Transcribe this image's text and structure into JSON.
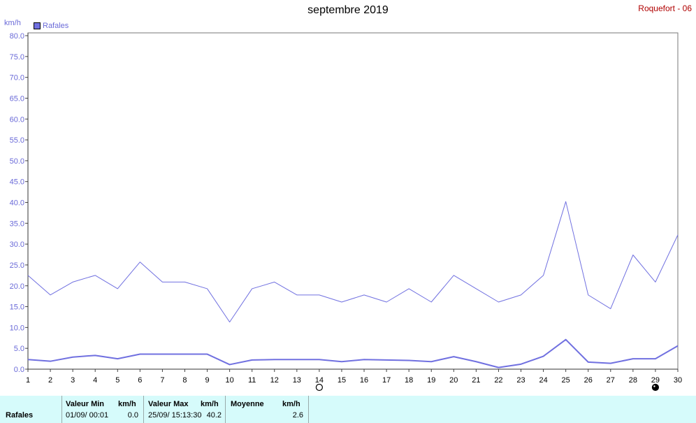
{
  "header": {
    "title": "septembre 2019",
    "station": "Roquefort - 06"
  },
  "legend": {
    "label": "Rafales"
  },
  "unit": "km/h",
  "colors": {
    "series": "#7070e0",
    "grid": "#888888",
    "station": "#b00000",
    "table_bg": "#d6fbfb"
  },
  "moon_icons": [
    {
      "day": 14,
      "icon": "full-moon-icon"
    },
    {
      "day": 29,
      "icon": "new-moon-icon"
    }
  ],
  "chart_data": {
    "type": "line",
    "title": "septembre 2019",
    "ylabel": "km/h",
    "ylim": [
      0,
      80
    ],
    "xlim": [
      1,
      30
    ],
    "grid": true,
    "legend_position": "top-left",
    "x": [
      1,
      2,
      3,
      4,
      5,
      6,
      7,
      8,
      9,
      10,
      11,
      12,
      13,
      14,
      15,
      16,
      17,
      18,
      19,
      20,
      21,
      22,
      23,
      24,
      25,
      26,
      27,
      28,
      29,
      30
    ],
    "x_ticks": [
      "1",
      "2",
      "3",
      "4",
      "5",
      "6",
      "7",
      "8",
      "9",
      "10",
      "11",
      "12",
      "13",
      "14",
      "15",
      "16",
      "17",
      "18",
      "19",
      "20",
      "21",
      "22",
      "23",
      "24",
      "25",
      "26",
      "27",
      "28",
      "29",
      "30"
    ],
    "y_ticks": [
      "0.0",
      "5.0",
      "10.0",
      "15.0",
      "20.0",
      "25.0",
      "30.0",
      "35.0",
      "40.0",
      "45.0",
      "50.0",
      "55.0",
      "60.0",
      "65.0",
      "70.0",
      "75.0",
      "80.0"
    ],
    "series": [
      {
        "name": "Rafales",
        "values": [
          22.5,
          17.8,
          20.9,
          22.5,
          19.3,
          25.7,
          20.9,
          20.9,
          19.3,
          11.3,
          19.3,
          20.9,
          17.8,
          17.8,
          16.1,
          17.8,
          16.1,
          19.3,
          16.1,
          22.5,
          19.3,
          16.1,
          17.8,
          22.5,
          40.2,
          17.8,
          14.5,
          27.4,
          20.9,
          32.2
        ]
      },
      {
        "name": "",
        "values": [
          2.3,
          1.9,
          2.9,
          3.3,
          2.5,
          3.6,
          3.6,
          3.6,
          3.6,
          1.1,
          2.2,
          2.3,
          2.3,
          2.3,
          1.8,
          2.3,
          2.2,
          2.1,
          1.8,
          3.0,
          1.8,
          0.4,
          1.2,
          3.1,
          7.1,
          1.7,
          1.4,
          2.5,
          2.5,
          5.6
        ]
      }
    ]
  },
  "summary": {
    "row_label": "Rafales",
    "min": {
      "header": "Valeur Min",
      "unit": "km/h",
      "date": "01/09/  00:01",
      "value": "0.0"
    },
    "max": {
      "header": "Valeur Max",
      "unit": "km/h",
      "date": "25/09/  15:13:30",
      "value": "40.2"
    },
    "avg": {
      "header": "Moyenne",
      "unit": "km/h",
      "value": "2.6"
    }
  }
}
